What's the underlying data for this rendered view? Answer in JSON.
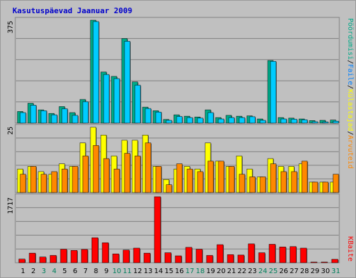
{
  "title": "Kasutuspäevad Jaanuar 2009",
  "legend": {
    "top_right": [
      {
        "text": "Külastajad",
        "color": "#ffff00"
      },
      {
        "text": "Faile",
        "color": "#0080ff"
      },
      {
        "text": "Pöördumisi",
        "color": "#00aa88"
      }
    ],
    "top_left": {
      "text": "Arvuteid",
      "color": "#ff8800"
    },
    "sep": "/",
    "bottom": {
      "text": "KBaite",
      "color": "#ff0000"
    }
  },
  "colors": {
    "background": "#c0c0c0",
    "border": "#999999",
    "grid": "#808080",
    "title": "#0000cc",
    "hits": "#00aa88",
    "files": "#00ccff",
    "visits": "#ffff00",
    "sites": "#ff8800",
    "kbytes": "#ff0000",
    "weekend_day": "#00805c",
    "weekday": "#000000"
  },
  "chart_data": {
    "type": "bar",
    "title": "Kasutuspäevad Jaanuar 2009",
    "categories": [
      "1",
      "2",
      "3",
      "4",
      "5",
      "6",
      "7",
      "8",
      "9",
      "10",
      "11",
      "12",
      "13",
      "14",
      "15",
      "16",
      "17",
      "18",
      "19",
      "20",
      "21",
      "22",
      "23",
      "24",
      "25",
      "26",
      "27",
      "28",
      "29",
      "30",
      "31"
    ],
    "weekend_days": [
      "3",
      "4",
      "10",
      "11",
      "17",
      "18",
      "24",
      "25",
      "31"
    ],
    "panels": [
      {
        "id": "hits-files",
        "ymax_label": "375",
        "ymax": 375,
        "series": [
          {
            "name": "Pöördumisi",
            "values": [
              42,
              72,
              48,
              35,
              60,
              38,
              86,
              375,
              186,
              170,
              308,
              150,
              58,
              45,
              13,
              30,
              25,
              22,
              48,
              20,
              28,
              25,
              26,
              15,
              228,
              20,
              18,
              15,
              9,
              10,
              11
            ]
          },
          {
            "name": "Faile",
            "values": [
              38,
              65,
              45,
              30,
              52,
              28,
              78,
              370,
              177,
              162,
              298,
              138,
              53,
              40,
              10,
              24,
              20,
              18,
              38,
              15,
              20,
              20,
              23,
              10,
              225,
              15,
              14,
              12,
              5,
              4,
              7
            ]
          }
        ]
      },
      {
        "id": "visits-sites",
        "ymax_label": "25",
        "ymax": 25,
        "series": [
          {
            "name": "Külastajad",
            "values": [
              9,
              10,
              8,
              7,
              11,
              10,
              19,
              25,
              22,
              14,
              20,
              20,
              22,
              10,
              5,
              9,
              10,
              9,
              19,
              12,
              10,
              14,
              9,
              6,
              13,
              10,
              10,
              11,
              4,
              4,
              4
            ]
          },
          {
            "name": "Arvuteid",
            "values": [
              7,
              10,
              7,
              8,
              9,
              10,
              14,
              18,
              13,
              9,
              15,
              14,
              19,
              10,
              3,
              11,
              9,
              8,
              12,
              12,
              10,
              7,
              6,
              6,
              11,
              8,
              8,
              12,
              4,
              4,
              7
            ]
          }
        ]
      },
      {
        "id": "kbytes",
        "ymax_label": "1717",
        "ymax": 1717,
        "series": [
          {
            "name": "KBaite",
            "values": [
              95,
              250,
              150,
              190,
              350,
              320,
              345,
              650,
              520,
              230,
              330,
              380,
              250,
              1717,
              260,
              180,
              400,
              350,
              190,
              470,
              210,
              200,
              490,
              260,
              480,
              410,
              420,
              380,
              10,
              10,
              90
            ]
          }
        ]
      }
    ]
  }
}
